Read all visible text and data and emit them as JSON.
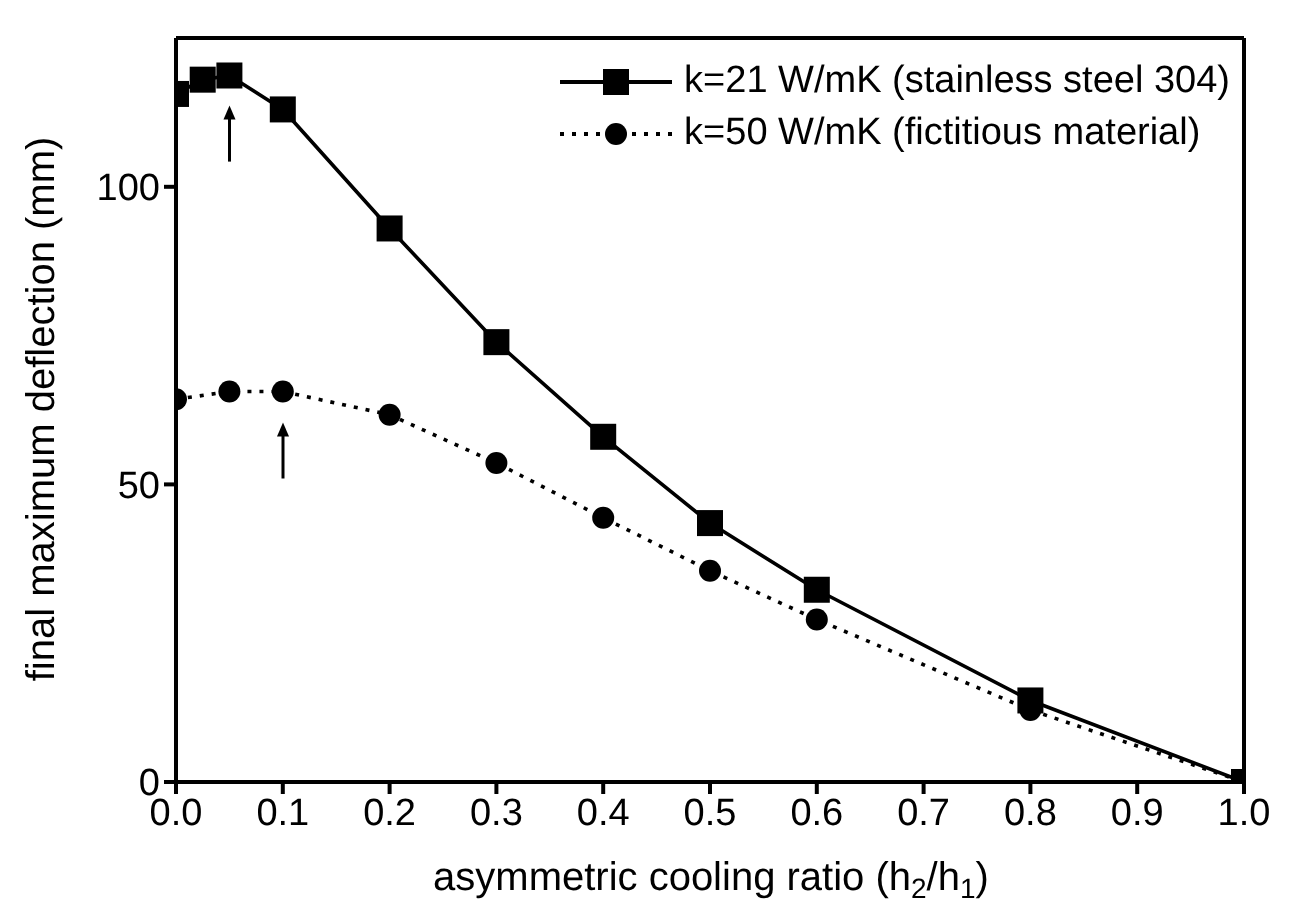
{
  "chart_data": {
    "type": "line",
    "xlabel": "asymmetric cooling ratio (h$_{2}$/h$_{1}$)",
    "ylabel": "final maximum deflection (mm)",
    "x": [
      0,
      0.025,
      0.05,
      0.1,
      0.2,
      0.3,
      0.4,
      0.5,
      0.6,
      0.8,
      1.0
    ],
    "series": [
      {
        "name": "k=21 W/mK (stainless steel 304)",
        "color": "#000000",
        "marker": "square",
        "line_style": "solid",
        "values": [
          115.6,
          118,
          118.7,
          113,
          93,
          73.9,
          58,
          43.5,
          32.3,
          13.7,
          0
        ]
      },
      {
        "name": "k=50 W/mK (fictitious material)",
        "color": "#000000",
        "marker": "circle",
        "line_style": "dotted",
        "x": [
          0,
          0.05,
          0.1,
          0.2,
          0.3,
          0.4,
          0.5,
          0.6,
          0.8,
          1.0
        ],
        "values": [
          64.3,
          65.6,
          65.6,
          61.7,
          53.6,
          44.4,
          35.5,
          27.3,
          12.1,
          0
        ]
      }
    ],
    "xlim": [
      0,
      1.0
    ],
    "xticks": [
      {
        "value": 0,
        "label": "0.0"
      },
      {
        "value": 0.1,
        "label": "0.1"
      },
      {
        "value": 0.2,
        "label": "0.2"
      },
      {
        "value": 0.3,
        "label": "0.3"
      },
      {
        "value": 0.4,
        "label": "0.4"
      },
      {
        "value": 0.5,
        "label": "0.5"
      },
      {
        "value": 0.6,
        "label": "0.6"
      },
      {
        "value": 0.7,
        "label": "0.7"
      },
      {
        "value": 0.8,
        "label": "0.8"
      },
      {
        "value": 0.9,
        "label": "0.9"
      },
      {
        "value": 1.0,
        "label": "1.0"
      }
    ],
    "ylim": [
      0,
      125
    ],
    "yticks": [
      0,
      50,
      100
    ],
    "legend": "top right"
  }
}
